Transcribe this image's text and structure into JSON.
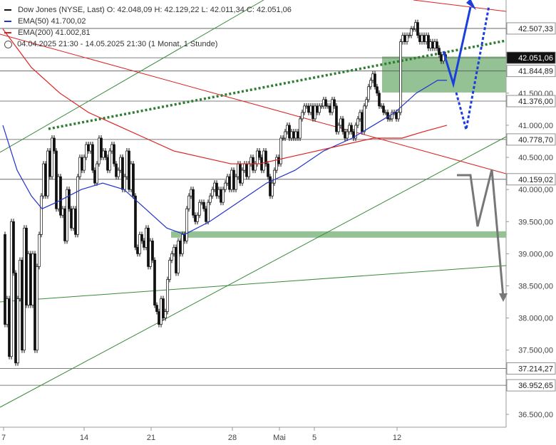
{
  "legend": {
    "instrument": "Dow Jones (NYSE, Last)",
    "ohlc": "O: 42.048,09  H: 42.129,22  L: 42.011,34  C: 42.051,06",
    "ema50_label": "EMA(50)",
    "ema50_value": "41.700,02",
    "ema200_label": "EMA(200)",
    "ema200_value": "41.002,81",
    "range": "04.04.2025 21:30 - 14.05.2025 21:30  (1 Monat, 1 Stunde)",
    "colors": {
      "ema50": "#2233cc",
      "ema200": "#dd2222",
      "text": "#333333"
    }
  },
  "chart_data": {
    "type": "line",
    "y_axis": {
      "ylim": [
        36300,
        42950
      ],
      "ticks": [
        36500,
        37000,
        37500,
        38000,
        38500,
        39000,
        39500,
        40000,
        40500,
        41000,
        41500
      ],
      "tick_labels": [
        "36.500,00",
        "37.000,00",
        "37.500,00",
        "38.000,00",
        "38.500,00",
        "39.000,00",
        "39.500,00",
        "40.000,00",
        "40.500,00",
        "41.000,00",
        "41.500,00"
      ]
    },
    "x_axis": {
      "tick_labels": [
        "7",
        "14",
        "21",
        "28",
        "Mai",
        "5",
        "12"
      ]
    },
    "price_levels": [
      {
        "value": 42507.33,
        "label": "42.507,33",
        "highlight": false
      },
      {
        "value": 42051.06,
        "label": "42.051,06",
        "highlight": true
      },
      {
        "value": 41844.89,
        "label": "41.844,89",
        "highlight": false
      },
      {
        "value": 41376.0,
        "label": "41.376,00",
        "highlight": false
      },
      {
        "value": 40778.7,
        "label": "40.778,70",
        "highlight": false
      },
      {
        "value": 40159.02,
        "label": "40.159,02",
        "highlight": false
      },
      {
        "value": 37214.27,
        "label": "37.214,27",
        "highlight": false
      },
      {
        "value": 36952.65,
        "label": "36.952,65",
        "highlight": false
      }
    ],
    "zones": [
      {
        "from": 41510,
        "to": 42070,
        "color": "#8fbf8f"
      },
      {
        "from": 39250,
        "to": 39350,
        "color": "#8fbf8f"
      }
    ],
    "series": [
      {
        "name": "Dow Jones",
        "color": "#111111",
        "points": [
          [
            0,
            39300
          ],
          [
            3,
            37900
          ],
          [
            6,
            38300
          ],
          [
            9,
            37400
          ],
          [
            12,
            39500
          ],
          [
            15,
            38700
          ],
          [
            18,
            37300
          ],
          [
            21,
            38300
          ],
          [
            24,
            38900
          ],
          [
            27,
            37500
          ],
          [
            30,
            39400
          ],
          [
            33,
            38200
          ],
          [
            36,
            39000
          ],
          [
            39,
            38200
          ],
          [
            42,
            39000
          ],
          [
            45,
            37500
          ],
          [
            48,
            38800
          ],
          [
            51,
            39300
          ],
          [
            54,
            39900
          ],
          [
            57,
            40400
          ],
          [
            60,
            39900
          ],
          [
            63,
            40600
          ],
          [
            66,
            40200
          ],
          [
            69,
            40800
          ],
          [
            72,
            40600
          ],
          [
            75,
            39700
          ],
          [
            78,
            40200
          ],
          [
            81,
            39600
          ],
          [
            84,
            39700
          ],
          [
            87,
            39200
          ],
          [
            90,
            40000
          ],
          [
            93,
            39700
          ],
          [
            96,
            39400
          ],
          [
            99,
            39700
          ],
          [
            102,
            39300
          ],
          [
            105,
            40200
          ],
          [
            108,
            40500
          ],
          [
            111,
            40300
          ],
          [
            114,
            40500
          ],
          [
            117,
            40700
          ],
          [
            120,
            40600
          ],
          [
            123,
            40700
          ],
          [
            126,
            40300
          ],
          [
            129,
            40100
          ],
          [
            132,
            40400
          ],
          [
            135,
            40800
          ],
          [
            138,
            40500
          ],
          [
            141,
            40600
          ],
          [
            144,
            40500
          ],
          [
            147,
            40300
          ],
          [
            150,
            40600
          ],
          [
            153,
            40700
          ],
          [
            156,
            40400
          ],
          [
            159,
            40200
          ],
          [
            162,
            40300
          ],
          [
            165,
            40500
          ],
          [
            168,
            40000
          ],
          [
            171,
            40200
          ],
          [
            174,
            40600
          ],
          [
            177,
            40000
          ],
          [
            180,
            40400
          ],
          [
            183,
            39900
          ],
          [
            186,
            39100
          ],
          [
            189,
            39000
          ],
          [
            192,
            39300
          ],
          [
            195,
            39200
          ],
          [
            198,
            39100
          ],
          [
            201,
            39400
          ],
          [
            204,
            38800
          ],
          [
            207,
            39200
          ],
          [
            210,
            38900
          ],
          [
            213,
            38200
          ],
          [
            216,
            38100
          ],
          [
            219,
            37900
          ],
          [
            222,
            38300
          ],
          [
            225,
            38000
          ],
          [
            228,
            38100
          ],
          [
            231,
            38600
          ],
          [
            234,
            38900
          ],
          [
            237,
            39000
          ],
          [
            240,
            39100
          ],
          [
            243,
            38700
          ],
          [
            246,
            39200
          ],
          [
            249,
            39000
          ],
          [
            252,
            39300
          ],
          [
            255,
            39200
          ],
          [
            258,
            39700
          ],
          [
            261,
            39900
          ],
          [
            264,
            40000
          ],
          [
            267,
            39600
          ],
          [
            270,
            39500
          ],
          [
            273,
            39600
          ],
          [
            276,
            39800
          ],
          [
            279,
            39800
          ],
          [
            282,
            39700
          ],
          [
            285,
            39500
          ],
          [
            288,
            39800
          ],
          [
            291,
            39900
          ],
          [
            294,
            40000
          ],
          [
            297,
            40100
          ],
          [
            300,
            39900
          ],
          [
            303,
            40000
          ],
          [
            306,
            39800
          ],
          [
            309,
            40000
          ],
          [
            312,
            40100
          ],
          [
            315,
            40200
          ],
          [
            318,
            40000
          ],
          [
            321,
            40300
          ],
          [
            324,
            40000
          ],
          [
            327,
            40200
          ],
          [
            330,
            40400
          ],
          [
            333,
            40100
          ],
          [
            336,
            40300
          ],
          [
            339,
            40400
          ],
          [
            342,
            40200
          ],
          [
            345,
            40400
          ],
          [
            348,
            40500
          ],
          [
            351,
            40300
          ],
          [
            354,
            40400
          ],
          [
            357,
            40600
          ],
          [
            360,
            40500
          ],
          [
            363,
            40300
          ],
          [
            366,
            40600
          ],
          [
            369,
            40400
          ],
          [
            372,
            40200
          ],
          [
            375,
            39900
          ],
          [
            378,
            40100
          ],
          [
            381,
            40300
          ],
          [
            384,
            40500
          ],
          [
            387,
            40400
          ],
          [
            390,
            40800
          ],
          [
            393,
            40800
          ],
          [
            396,
            40900
          ],
          [
            399,
            41000
          ],
          [
            402,
            40800
          ],
          [
            405,
            40900
          ],
          [
            408,
            40800
          ],
          [
            411,
            40900
          ],
          [
            414,
            40800
          ],
          [
            417,
            41100
          ],
          [
            420,
            41200
          ],
          [
            423,
            41300
          ],
          [
            426,
            41300
          ],
          [
            429,
            41200
          ],
          [
            432,
            41300
          ],
          [
            435,
            41100
          ],
          [
            438,
            41300
          ],
          [
            441,
            41200
          ],
          [
            444,
            41300
          ],
          [
            447,
            41300
          ],
          [
            450,
            41400
          ],
          [
            453,
            41300
          ],
          [
            456,
            41300
          ],
          [
            459,
            41200
          ],
          [
            462,
            41400
          ],
          [
            465,
            41300
          ],
          [
            468,
            40900
          ],
          [
            471,
            41000
          ],
          [
            474,
            41100
          ],
          [
            477,
            40900
          ],
          [
            480,
            40800
          ],
          [
            483,
            40900
          ],
          [
            486,
            41000
          ],
          [
            489,
            40900
          ],
          [
            492,
            40800
          ],
          [
            495,
            41000
          ],
          [
            498,
            41100
          ],
          [
            501,
            41200
          ],
          [
            504,
            40900
          ],
          [
            507,
            41300
          ],
          [
            510,
            41400
          ],
          [
            513,
            41600
          ],
          [
            516,
            41700
          ],
          [
            519,
            41800
          ],
          [
            522,
            41600
          ],
          [
            525,
            41500
          ],
          [
            528,
            41300
          ],
          [
            531,
            41300
          ],
          [
            534,
            41200
          ],
          [
            537,
            41200
          ],
          [
            540,
            41100
          ],
          [
            543,
            41100
          ],
          [
            546,
            41200
          ],
          [
            549,
            41200
          ],
          [
            552,
            41100
          ],
          [
            555,
            41200
          ],
          [
            558,
            42300
          ],
          [
            561,
            42400
          ],
          [
            564,
            42300
          ],
          [
            567,
            42400
          ],
          [
            570,
            42400
          ],
          [
            573,
            42500
          ],
          [
            576,
            42500
          ],
          [
            579,
            42600
          ],
          [
            582,
            42400
          ],
          [
            585,
            42300
          ],
          [
            588,
            42400
          ],
          [
            591,
            42300
          ],
          [
            594,
            42400
          ],
          [
            597,
            42200
          ],
          [
            600,
            42300
          ],
          [
            603,
            42200
          ],
          [
            606,
            42300
          ],
          [
            609,
            42200
          ],
          [
            612,
            42100
          ],
          [
            615,
            42000
          ],
          [
            618,
            42100
          ],
          [
            621,
            42050
          ]
        ]
      },
      {
        "name": "EMA(50)",
        "color": "#2233cc",
        "points": [
          [
            0,
            41000
          ],
          [
            20,
            40300
          ],
          [
            40,
            39900
          ],
          [
            55,
            39700
          ],
          [
            75,
            39800
          ],
          [
            110,
            40000
          ],
          [
            140,
            40100
          ],
          [
            170,
            40000
          ],
          [
            200,
            39700
          ],
          [
            230,
            39400
          ],
          [
            255,
            39300
          ],
          [
            290,
            39500
          ],
          [
            330,
            39800
          ],
          [
            370,
            40100
          ],
          [
            410,
            40300
          ],
          [
            450,
            40600
          ],
          [
            490,
            40800
          ],
          [
            520,
            41000
          ],
          [
            550,
            41200
          ],
          [
            580,
            41500
          ],
          [
            610,
            41700
          ],
          [
            623,
            41700
          ]
        ]
      },
      {
        "name": "EMA(200)",
        "color": "#dd2222",
        "points": [
          [
            0,
            42500
          ],
          [
            40,
            41900
          ],
          [
            80,
            41500
          ],
          [
            120,
            41200
          ],
          [
            160,
            41000
          ],
          [
            200,
            40800
          ],
          [
            240,
            40600
          ],
          [
            280,
            40500
          ],
          [
            320,
            40400
          ],
          [
            360,
            40400
          ],
          [
            400,
            40500
          ],
          [
            440,
            40600
          ],
          [
            480,
            40700
          ],
          [
            520,
            40800
          ],
          [
            560,
            40800
          ],
          [
            590,
            40900
          ],
          [
            623,
            41000
          ]
        ]
      }
    ]
  }
}
